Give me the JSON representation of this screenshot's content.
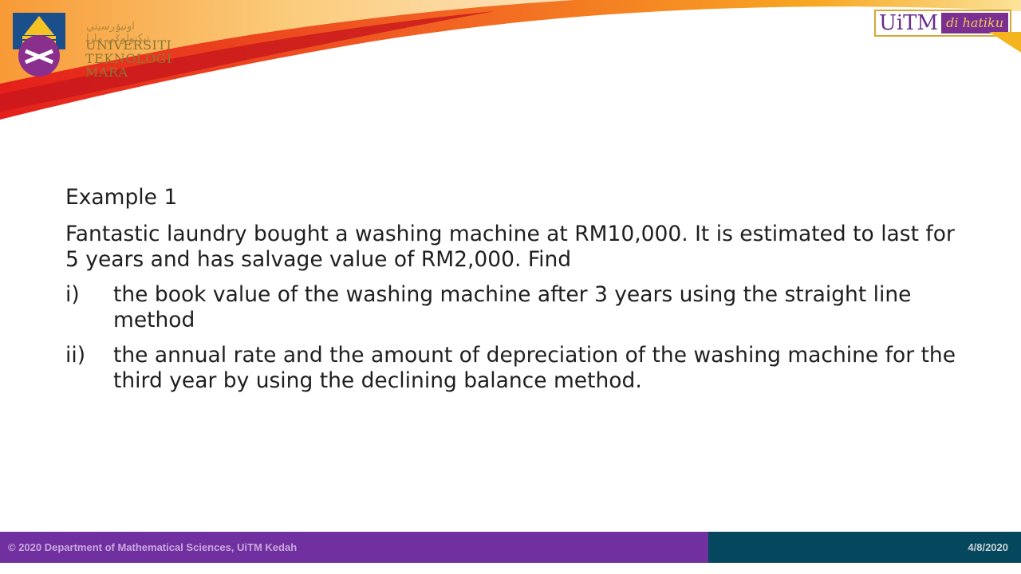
{
  "header": {
    "logo_jawi": "اونيۏرسيتي تيكنولوݢي مارا",
    "logo_lines": [
      "UNIVERSITI",
      "TEKNOLOGI",
      "MARA"
    ],
    "tag_brand": "UiTM",
    "tag_slogan": "di hatiku"
  },
  "slide": {
    "heading": "Example 1",
    "intro": "Fantastic laundry bought a washing machine at RM10,000. It is estimated to last for 5 years and has salvage value of RM2,000. Find",
    "items": [
      {
        "num": "i)",
        "text": "the book value of the washing machine after 3 years using the straight line method"
      },
      {
        "num": "ii)",
        "text": "the annual rate and the amount of depreciation of the washing machine for the third year by using the declining balance method."
      }
    ]
  },
  "footer": {
    "copyright": "© 2020 Department of Mathematical Sciences, UiTM Kedah",
    "date": "4/8/2020"
  },
  "colors": {
    "footer_left": "#7030a0",
    "footer_right": "#05485e",
    "banner_red": "#e3221c",
    "banner_orange": "#f7931e",
    "banner_yellow": "#fbd24a"
  }
}
